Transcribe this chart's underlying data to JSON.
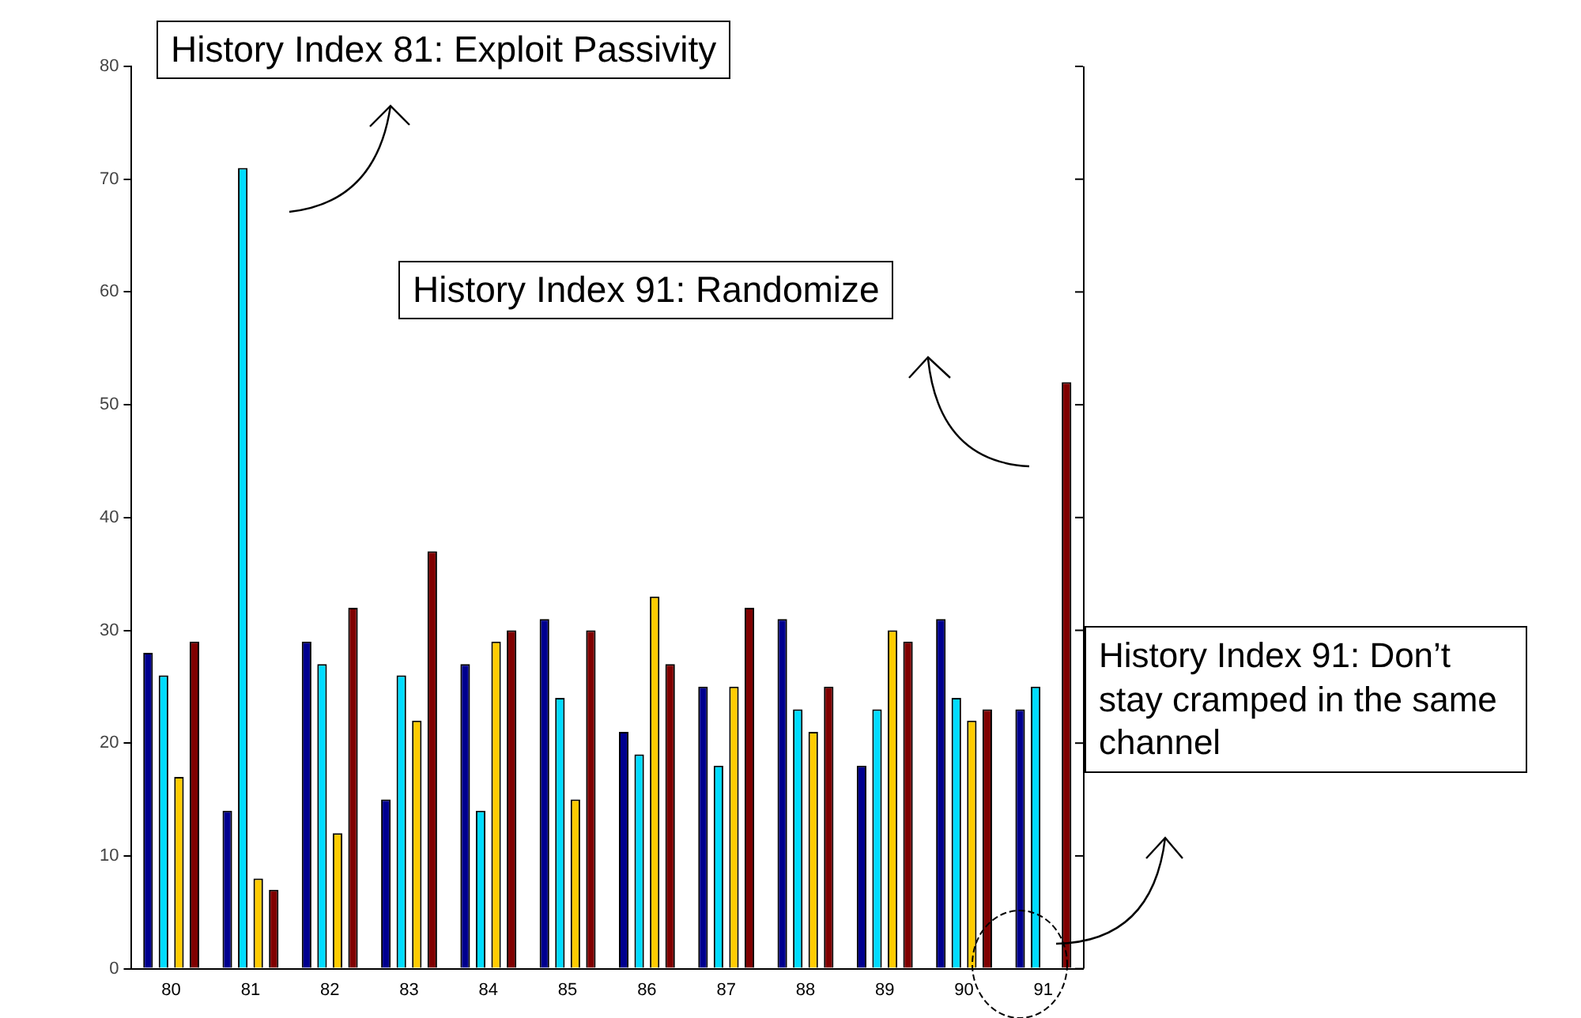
{
  "chart_data": {
    "type": "bar",
    "categories": [
      "80",
      "81",
      "82",
      "83",
      "84",
      "85",
      "86",
      "87",
      "88",
      "89",
      "90",
      "91"
    ],
    "series": [
      {
        "color": "#00008f",
        "values": [
          28,
          14,
          29,
          15,
          27,
          31,
          21,
          25,
          31,
          18,
          31,
          23
        ]
      },
      {
        "color": "#00dcff",
        "values": [
          26,
          71,
          27,
          26,
          14,
          24,
          19,
          18,
          23,
          23,
          24,
          25
        ]
      },
      {
        "color": "#ffcc00",
        "values": [
          17,
          8,
          12,
          22,
          29,
          15,
          33,
          25,
          21,
          30,
          22,
          0
        ]
      },
      {
        "color": "#800000",
        "values": [
          29,
          7,
          32,
          37,
          30,
          30,
          27,
          32,
          25,
          29,
          23,
          52
        ]
      }
    ],
    "ylim": [
      0,
      80
    ],
    "yticks": [
      0,
      10,
      20,
      30,
      40,
      50,
      60,
      70,
      80
    ],
    "grid": false,
    "legend": false,
    "annotations": [
      "History Index 81:  Exploit  Passivity",
      "History Index 91: Randomize",
      "History Index 91: Don’t stay cramped in the same channel"
    ]
  }
}
